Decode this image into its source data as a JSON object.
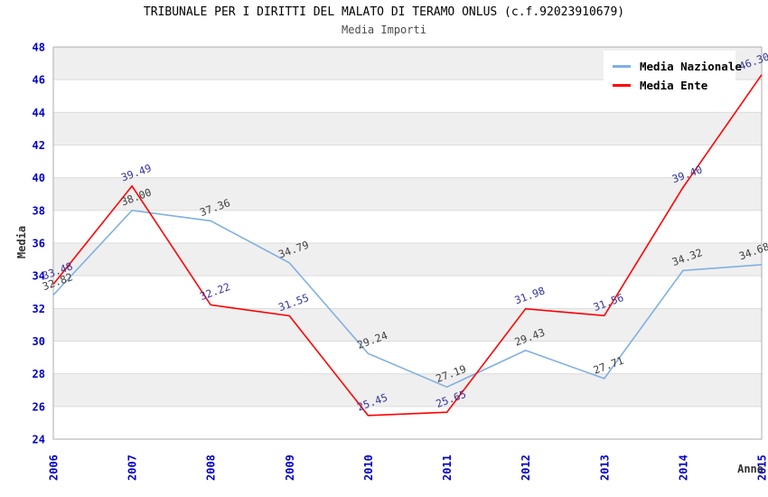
{
  "header": {
    "title": "TRIBUNALE PER I DIRITTI DEL MALATO DI TERAMO ONLUS (c.f.92023910679)",
    "subtitle": "Media Importi"
  },
  "legend": {
    "items": [
      {
        "label": "Media Nazionale",
        "color": "#7FB0E2"
      },
      {
        "label": "Media Ente",
        "color": "#FF0000"
      }
    ]
  },
  "chart_data": {
    "type": "line",
    "title": "TRIBUNALE PER I DIRITTI DEL MALATO DI TERAMO ONLUS (c.f.92023910679)",
    "subtitle": "Media Importi",
    "x": [
      "2006",
      "2007",
      "2008",
      "2009",
      "2010",
      "2011",
      "2012",
      "2013",
      "2014",
      "2015"
    ],
    "series": [
      {
        "name": "Media Nazionale",
        "color": "#7FB0E2",
        "label_color": "#3F3F3F",
        "values": [
          32.82,
          38.0,
          37.36,
          34.79,
          29.24,
          27.19,
          29.43,
          27.71,
          34.32,
          34.68
        ]
      },
      {
        "name": "Media Ente",
        "color": "#FF0000",
        "label_color": "#34349B",
        "values": [
          33.48,
          39.49,
          32.22,
          31.55,
          25.45,
          25.65,
          31.98,
          31.56,
          39.4,
          46.3
        ]
      }
    ],
    "xlabel": "Anno",
    "ylabel": "Media",
    "ylim": [
      24,
      48
    ],
    "ytick_step": 2,
    "grid": "horizontal-bands-alternating",
    "legend_position": "top-right",
    "colors": {
      "axis_tick_label": "#0000CC",
      "axis_title": "#333333",
      "band_gray": "#EFEFEF",
      "band_white": "#FFFFFF",
      "band_line": "#DCDCDC",
      "plot_border": "#ADADAD"
    }
  }
}
